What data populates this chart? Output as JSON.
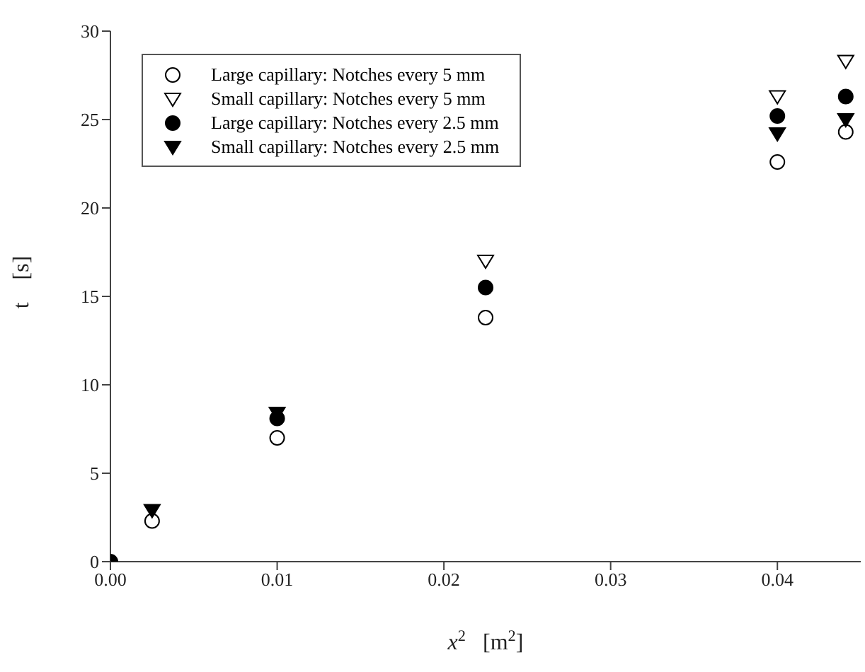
{
  "chart_data": {
    "type": "scatter",
    "xlabel": "x$^{2}$   [m$^{2}$]",
    "ylabel": "t    [s]",
    "x": [
      0,
      0.0025,
      0.01,
      0.0225,
      0.04,
      0.0441
    ],
    "xlim": [
      0,
      0.045
    ],
    "xticks": [
      {
        "value": 0,
        "label": "0.00"
      },
      {
        "value": 0.01,
        "label": "0.01"
      },
      {
        "value": 0.02,
        "label": "0.02"
      },
      {
        "value": 0.03,
        "label": "0.03"
      },
      {
        "value": 0.04,
        "label": "0.04"
      }
    ],
    "ylim": [
      0,
      30
    ],
    "yticks": [
      0,
      5,
      10,
      15,
      20,
      25,
      30
    ],
    "legend": "top left",
    "series": [
      {
        "name": "Large capillary: Notches every 5 mm",
        "color": "#ffffff",
        "marker": "circle",
        "values": [
          null,
          2.3,
          7.0,
          13.8,
          22.6,
          24.3
        ]
      },
      {
        "name": "Small capillary: Notches every 5 mm",
        "color": "#ffffff",
        "marker": "triangle",
        "values": [
          null,
          null,
          null,
          17.0,
          26.3,
          28.3
        ]
      },
      {
        "name": "Large capillary: Notches every 2.5 mm",
        "color": "#000000",
        "marker": "circle",
        "values": [
          0,
          null,
          8.1,
          15.5,
          25.2,
          26.3
        ]
      },
      {
        "name": "Small capillary: Notches every 2.5 mm",
        "color": "#000000",
        "marker": "triangle",
        "values": [
          null,
          2.9,
          8.4,
          null,
          24.2,
          25.0
        ]
      }
    ]
  }
}
